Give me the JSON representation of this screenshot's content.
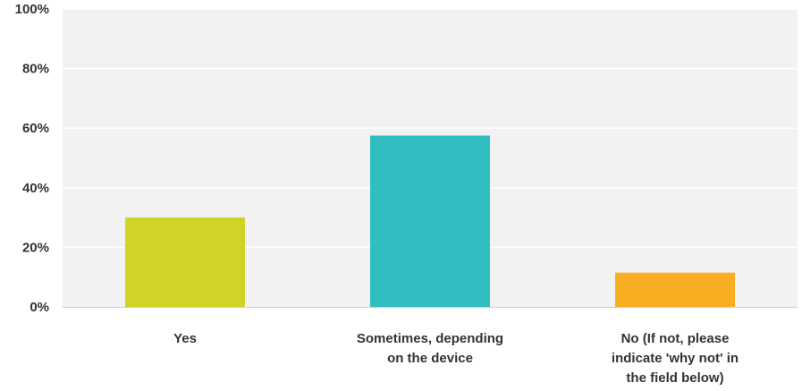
{
  "chart_data": {
    "type": "bar",
    "categories": [
      [
        "Yes"
      ],
      [
        "Sometimes, depending",
        "on the device"
      ],
      [
        "No (If not, please",
        "indicate 'why not' in",
        "the field below)"
      ]
    ],
    "values": [
      30,
      57.5,
      11.5
    ],
    "colors": [
      "#cfd427",
      "#31bec1",
      "#f7ae22"
    ],
    "ylim": [
      0,
      100
    ],
    "yticks": [
      {
        "value": 0,
        "label": "0%"
      },
      {
        "value": 20,
        "label": "20%"
      },
      {
        "value": 40,
        "label": "40%"
      },
      {
        "value": 60,
        "label": "60%"
      },
      {
        "value": 80,
        "label": "80%"
      },
      {
        "value": 100,
        "label": "100%"
      }
    ],
    "plot_background": "#f2f2f2",
    "grid": true,
    "grid_color": "#ffffff"
  }
}
